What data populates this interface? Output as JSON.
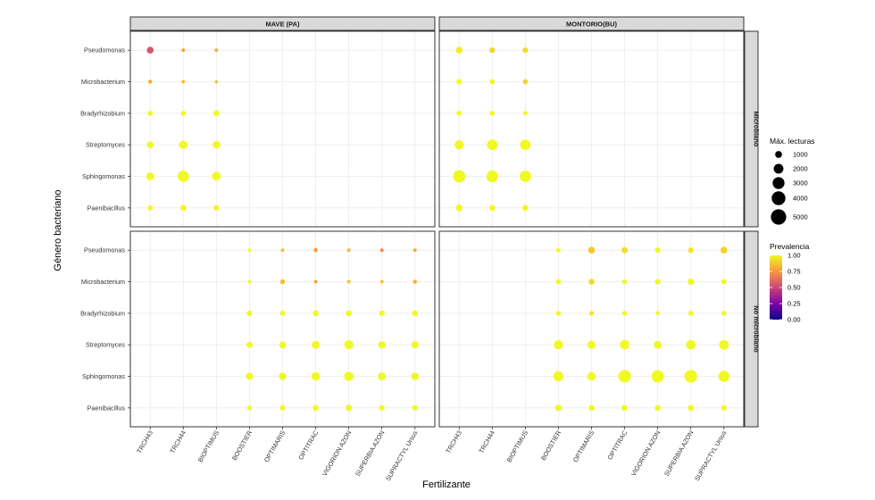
{
  "chart_data": {
    "type": "scatter",
    "title": "",
    "xlabel": "Fertilizante",
    "ylabel": "Género bacteriano",
    "x_categories": [
      "TRCH43",
      "TRCH44",
      "BIOPTIMUS",
      "BOOSTIER",
      "OPTIMARIS",
      "OPTITRAC",
      "VIGORION AZON",
      "SUPERBIA AZON",
      "SUPRACTYL Ursus"
    ],
    "y_categories": [
      "Pseudomonas",
      "Microbacterium",
      "Bradyrhizobium",
      "Streptomyces",
      "Sphingomonas",
      "Paenibacillus"
    ],
    "facet_cols": [
      "MAVE (PA)",
      "MONTORIO(BU)"
    ],
    "facet_rows": [
      "Microbiano",
      "No microbiano"
    ],
    "size_legend": {
      "title": "Máx. lecturas",
      "breaks": [
        1000,
        2000,
        3000,
        4000,
        5000
      ],
      "labels": [
        "1000",
        "2000",
        "3000",
        "4000",
        "5000"
      ]
    },
    "color_legend": {
      "title": "Prevalencia",
      "breaks": [
        0,
        0.25,
        0.5,
        0.75,
        1
      ],
      "labels": [
        "0.00",
        "0.25",
        "0.50",
        "0.75",
        "1.00"
      ],
      "colors": [
        "#0d0887",
        "#7e03a8",
        "#cc4778",
        "#f89540",
        "#f0f921"
      ]
    },
    "panels": [
      {
        "col": "MAVE (PA)",
        "row": "Microbiano",
        "points": [
          {
            "x": "TRCH43",
            "y": "Pseudomonas",
            "reads": 1000,
            "prev": 0.55
          },
          {
            "x": "TRCH44",
            "y": "Pseudomonas",
            "reads": 250,
            "prev": 0.78
          },
          {
            "x": "BIOPTIMUS",
            "y": "Pseudomonas",
            "reads": 250,
            "prev": 0.8
          },
          {
            "x": "TRCH43",
            "y": "Microbacterium",
            "reads": 350,
            "prev": 0.82
          },
          {
            "x": "TRCH44",
            "y": "Microbacterium",
            "reads": 250,
            "prev": 0.85
          },
          {
            "x": "BIOPTIMUS",
            "y": "Microbacterium",
            "reads": 220,
            "prev": 0.85
          },
          {
            "x": "TRCH43",
            "y": "Bradyrhizobium",
            "reads": 550,
            "prev": 1.0
          },
          {
            "x": "TRCH44",
            "y": "Bradyrhizobium",
            "reads": 550,
            "prev": 1.0
          },
          {
            "x": "BIOPTIMUS",
            "y": "Bradyrhizobium",
            "reads": 750,
            "prev": 1.0
          },
          {
            "x": "TRCH43",
            "y": "Streptomyces",
            "reads": 1000,
            "prev": 1.0
          },
          {
            "x": "TRCH44",
            "y": "Streptomyces",
            "reads": 1500,
            "prev": 1.0
          },
          {
            "x": "BIOPTIMUS",
            "y": "Streptomyces",
            "reads": 1200,
            "prev": 1.0
          },
          {
            "x": "TRCH43",
            "y": "Sphingomonas",
            "reads": 1300,
            "prev": 1.0
          },
          {
            "x": "TRCH44",
            "y": "Sphingomonas",
            "reads": 2600,
            "prev": 1.0
          },
          {
            "x": "BIOPTIMUS",
            "y": "Sphingomonas",
            "reads": 1600,
            "prev": 1.0
          },
          {
            "x": "TRCH43",
            "y": "Paenibacillus",
            "reads": 550,
            "prev": 1.0
          },
          {
            "x": "TRCH44",
            "y": "Paenibacillus",
            "reads": 750,
            "prev": 1.0
          },
          {
            "x": "BIOPTIMUS",
            "y": "Paenibacillus",
            "reads": 650,
            "prev": 1.0
          }
        ]
      },
      {
        "col": "MONTORIO(BU)",
        "row": "Microbiano",
        "points": [
          {
            "x": "TRCH43",
            "y": "Pseudomonas",
            "reads": 1000,
            "prev": 0.97
          },
          {
            "x": "TRCH44",
            "y": "Pseudomonas",
            "reads": 650,
            "prev": 0.9
          },
          {
            "x": "BIOPTIMUS",
            "y": "Pseudomonas",
            "reads": 650,
            "prev": 0.92
          },
          {
            "x": "TRCH43",
            "y": "Microbacterium",
            "reads": 650,
            "prev": 1.0
          },
          {
            "x": "TRCH44",
            "y": "Microbacterium",
            "reads": 550,
            "prev": 1.0
          },
          {
            "x": "BIOPTIMUS",
            "y": "Microbacterium",
            "reads": 550,
            "prev": 0.9
          },
          {
            "x": "TRCH43",
            "y": "Bradyrhizobium",
            "reads": 550,
            "prev": 1.0
          },
          {
            "x": "TRCH44",
            "y": "Bradyrhizobium",
            "reads": 500,
            "prev": 1.0
          },
          {
            "x": "BIOPTIMUS",
            "y": "Bradyrhizobium",
            "reads": 400,
            "prev": 1.0
          },
          {
            "x": "TRCH43",
            "y": "Streptomyces",
            "reads": 1800,
            "prev": 1.0
          },
          {
            "x": "TRCH44",
            "y": "Streptomyces",
            "reads": 2300,
            "prev": 1.0
          },
          {
            "x": "BIOPTIMUS",
            "y": "Streptomyces",
            "reads": 2300,
            "prev": 1.0
          },
          {
            "x": "TRCH43",
            "y": "Sphingomonas",
            "reads": 3200,
            "prev": 1.0
          },
          {
            "x": "TRCH44",
            "y": "Sphingomonas",
            "reads": 2900,
            "prev": 1.0
          },
          {
            "x": "BIOPTIMUS",
            "y": "Sphingomonas",
            "reads": 2800,
            "prev": 1.0
          },
          {
            "x": "TRCH43",
            "y": "Paenibacillus",
            "reads": 1000,
            "prev": 1.0
          },
          {
            "x": "TRCH44",
            "y": "Paenibacillus",
            "reads": 750,
            "prev": 1.0
          },
          {
            "x": "BIOPTIMUS",
            "y": "Paenibacillus",
            "reads": 750,
            "prev": 1.0
          }
        ]
      },
      {
        "col": "MAVE (PA)",
        "row": "No microbiano",
        "points": [
          {
            "x": "BOOSTIER",
            "y": "Pseudomonas",
            "reads": 250,
            "prev": 1.0
          },
          {
            "x": "OPTIMARIS",
            "y": "Pseudomonas",
            "reads": 250,
            "prev": 0.85
          },
          {
            "x": "OPTITRAC",
            "y": "Pseudomonas",
            "reads": 350,
            "prev": 0.75
          },
          {
            "x": "VIGORION AZON",
            "y": "Pseudomonas",
            "reads": 300,
            "prev": 0.85
          },
          {
            "x": "SUPERBIA AZON",
            "y": "Pseudomonas",
            "reads": 250,
            "prev": 0.7
          },
          {
            "x": "SUPRACTYL Ursus",
            "y": "Pseudomonas",
            "reads": 250,
            "prev": 0.8
          },
          {
            "x": "BOOSTIER",
            "y": "Microbacterium",
            "reads": 220,
            "prev": 1.0
          },
          {
            "x": "OPTIMARIS",
            "y": "Microbacterium",
            "reads": 500,
            "prev": 0.85
          },
          {
            "x": "OPTITRAC",
            "y": "Microbacterium",
            "reads": 300,
            "prev": 0.8
          },
          {
            "x": "VIGORION AZON",
            "y": "Microbacterium",
            "reads": 300,
            "prev": 0.88
          },
          {
            "x": "SUPERBIA AZON",
            "y": "Microbacterium",
            "reads": 300,
            "prev": 0.88
          },
          {
            "x": "SUPRACTYL Ursus",
            "y": "Microbacterium",
            "reads": 350,
            "prev": 0.82
          },
          {
            "x": "BOOSTIER",
            "y": "Bradyrhizobium",
            "reads": 600,
            "prev": 1.0
          },
          {
            "x": "OPTIMARIS",
            "y": "Bradyrhizobium",
            "reads": 550,
            "prev": 1.0
          },
          {
            "x": "OPTITRAC",
            "y": "Bradyrhizobium",
            "reads": 750,
            "prev": 1.0
          },
          {
            "x": "VIGORION AZON",
            "y": "Bradyrhizobium",
            "reads": 750,
            "prev": 1.0
          },
          {
            "x": "SUPERBIA AZON",
            "y": "Bradyrhizobium",
            "reads": 650,
            "prev": 1.0
          },
          {
            "x": "SUPRACTYL Ursus",
            "y": "Bradyrhizobium",
            "reads": 700,
            "prev": 1.0
          },
          {
            "x": "BOOSTIER",
            "y": "Streptomyces",
            "reads": 800,
            "prev": 1.0
          },
          {
            "x": "OPTIMARIS",
            "y": "Streptomyces",
            "reads": 1000,
            "prev": 1.0
          },
          {
            "x": "OPTITRAC",
            "y": "Streptomyces",
            "reads": 1300,
            "prev": 1.0
          },
          {
            "x": "VIGORION AZON",
            "y": "Streptomyces",
            "reads": 1700,
            "prev": 1.0
          },
          {
            "x": "SUPERBIA AZON",
            "y": "Streptomyces",
            "reads": 1100,
            "prev": 1.0
          },
          {
            "x": "SUPRACTYL Ursus",
            "y": "Streptomyces",
            "reads": 1100,
            "prev": 1.0
          },
          {
            "x": "BOOSTIER",
            "y": "Sphingomonas",
            "reads": 1100,
            "prev": 1.0
          },
          {
            "x": "OPTIMARIS",
            "y": "Sphingomonas",
            "reads": 1200,
            "prev": 1.0
          },
          {
            "x": "OPTITRAC",
            "y": "Sphingomonas",
            "reads": 1500,
            "prev": 1.0
          },
          {
            "x": "VIGORION AZON",
            "y": "Sphingomonas",
            "reads": 1800,
            "prev": 1.0
          },
          {
            "x": "SUPERBIA AZON",
            "y": "Sphingomonas",
            "reads": 1300,
            "prev": 1.0
          },
          {
            "x": "SUPRACTYL Ursus",
            "y": "Sphingomonas",
            "reads": 1200,
            "prev": 1.0
          },
          {
            "x": "BOOSTIER",
            "y": "Paenibacillus",
            "reads": 500,
            "prev": 1.0
          },
          {
            "x": "OPTIMARIS",
            "y": "Paenibacillus",
            "reads": 600,
            "prev": 1.0
          },
          {
            "x": "OPTITRAC",
            "y": "Paenibacillus",
            "reads": 750,
            "prev": 1.0
          },
          {
            "x": "VIGORION AZON",
            "y": "Paenibacillus",
            "reads": 900,
            "prev": 1.0
          },
          {
            "x": "SUPERBIA AZON",
            "y": "Paenibacillus",
            "reads": 650,
            "prev": 1.0
          },
          {
            "x": "SUPRACTYL Ursus",
            "y": "Paenibacillus",
            "reads": 650,
            "prev": 1.0
          }
        ]
      },
      {
        "col": "MONTORIO(BU)",
        "row": "No microbiano",
        "points": [
          {
            "x": "BOOSTIER",
            "y": "Pseudomonas",
            "reads": 400,
            "prev": 1.0
          },
          {
            "x": "OPTIMARIS",
            "y": "Pseudomonas",
            "reads": 1000,
            "prev": 0.88
          },
          {
            "x": "OPTITRAC",
            "y": "Pseudomonas",
            "reads": 800,
            "prev": 0.93
          },
          {
            "x": "VIGORION AZON",
            "y": "Pseudomonas",
            "reads": 650,
            "prev": 1.0
          },
          {
            "x": "SUPERBIA AZON",
            "y": "Pseudomonas",
            "reads": 650,
            "prev": 0.95
          },
          {
            "x": "SUPRACTYL Ursus",
            "y": "Pseudomonas",
            "reads": 1000,
            "prev": 0.9
          },
          {
            "x": "BOOSTIER",
            "y": "Microbacterium",
            "reads": 550,
            "prev": 1.0
          },
          {
            "x": "OPTIMARIS",
            "y": "Microbacterium",
            "reads": 750,
            "prev": 0.92
          },
          {
            "x": "OPTITRAC",
            "y": "Microbacterium",
            "reads": 500,
            "prev": 1.0
          },
          {
            "x": "VIGORION AZON",
            "y": "Microbacterium",
            "reads": 650,
            "prev": 1.0
          },
          {
            "x": "SUPERBIA AZON",
            "y": "Microbacterium",
            "reads": 850,
            "prev": 1.0
          },
          {
            "x": "SUPRACTYL Ursus",
            "y": "Microbacterium",
            "reads": 550,
            "prev": 1.0
          },
          {
            "x": "BOOSTIER",
            "y": "Bradyrhizobium",
            "reads": 500,
            "prev": 1.0
          },
          {
            "x": "OPTIMARIS",
            "y": "Bradyrhizobium",
            "reads": 450,
            "prev": 0.95
          },
          {
            "x": "OPTITRAC",
            "y": "Bradyrhizobium",
            "reads": 500,
            "prev": 1.0
          },
          {
            "x": "VIGORION AZON",
            "y": "Bradyrhizobium",
            "reads": 400,
            "prev": 1.0
          },
          {
            "x": "SUPERBIA AZON",
            "y": "Bradyrhizobium",
            "reads": 550,
            "prev": 1.0
          },
          {
            "x": "SUPRACTYL Ursus",
            "y": "Bradyrhizobium",
            "reads": 500,
            "prev": 1.0
          },
          {
            "x": "BOOSTIER",
            "y": "Streptomyces",
            "reads": 1800,
            "prev": 1.0
          },
          {
            "x": "OPTIMARIS",
            "y": "Streptomyces",
            "reads": 1400,
            "prev": 1.0
          },
          {
            "x": "OPTITRAC",
            "y": "Streptomyces",
            "reads": 1900,
            "prev": 1.0
          },
          {
            "x": "VIGORION AZON",
            "y": "Streptomyces",
            "reads": 1300,
            "prev": 1.0
          },
          {
            "x": "SUPERBIA AZON",
            "y": "Streptomyces",
            "reads": 1900,
            "prev": 1.0
          },
          {
            "x": "SUPRACTYL Ursus",
            "y": "Streptomyces",
            "reads": 2000,
            "prev": 1.0
          },
          {
            "x": "BOOSTIER",
            "y": "Sphingomonas",
            "reads": 2100,
            "prev": 1.0
          },
          {
            "x": "OPTIMARIS",
            "y": "Sphingomonas",
            "reads": 1500,
            "prev": 1.0
          },
          {
            "x": "OPTITRAC",
            "y": "Sphingomonas",
            "reads": 3300,
            "prev": 1.0
          },
          {
            "x": "VIGORION AZON",
            "y": "Sphingomonas",
            "reads": 3200,
            "prev": 1.0
          },
          {
            "x": "SUPERBIA AZON",
            "y": "Sphingomonas",
            "reads": 3400,
            "prev": 1.0
          },
          {
            "x": "SUPRACTYL Ursus",
            "y": "Sphingomonas",
            "reads": 2600,
            "prev": 1.0
          },
          {
            "x": "BOOSTIER",
            "y": "Paenibacillus",
            "reads": 850,
            "prev": 1.0
          },
          {
            "x": "OPTIMARIS",
            "y": "Paenibacillus",
            "reads": 750,
            "prev": 1.0
          },
          {
            "x": "OPTITRAC",
            "y": "Paenibacillus",
            "reads": 750,
            "prev": 1.0
          },
          {
            "x": "VIGORION AZON",
            "y": "Paenibacillus",
            "reads": 750,
            "prev": 1.0
          },
          {
            "x": "SUPERBIA AZON",
            "y": "Paenibacillus",
            "reads": 750,
            "prev": 1.0
          },
          {
            "x": "SUPRACTYL Ursus",
            "y": "Paenibacillus",
            "reads": 650,
            "prev": 1.0
          }
        ]
      }
    ]
  }
}
